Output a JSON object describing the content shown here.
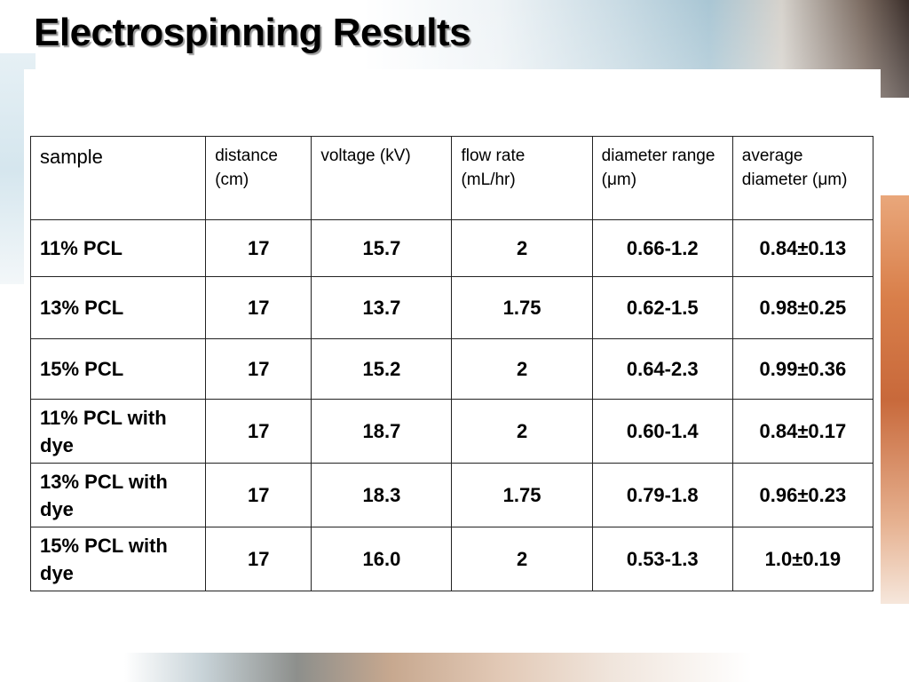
{
  "slide": {
    "title": "Electrospinning Results"
  },
  "table": {
    "headers": {
      "sample": "sample",
      "distance": "distance (cm)",
      "voltage": "voltage (kV)",
      "flow_rate": "flow rate (mL/hr)",
      "diameter_range": "diameter range (μm)",
      "average_diameter": "average diameter (μm)"
    },
    "rows": [
      {
        "sample": "11% PCL",
        "distance": "17",
        "voltage": "15.7",
        "flow_rate": "2",
        "diameter_range": "0.66-1.2",
        "average_diameter": "0.84±0.13"
      },
      {
        "sample": "13% PCL",
        "distance": "17",
        "voltage": "13.7",
        "flow_rate": "1.75",
        "diameter_range": "0.62-1.5",
        "average_diameter": "0.98±0.25"
      },
      {
        "sample": "15% PCL",
        "distance": "17",
        "voltage": "15.2",
        "flow_rate": "2",
        "diameter_range": "0.64-2.3",
        "average_diameter": "0.99±0.36"
      },
      {
        "sample": "11% PCL with dye",
        "distance": "17",
        "voltage": "18.7",
        "flow_rate": "2",
        "diameter_range": "0.60-1.4",
        "average_diameter": "0.84±0.17"
      },
      {
        "sample": "13% PCL with dye",
        "distance": "17",
        "voltage": "18.3",
        "flow_rate": "1.75",
        "diameter_range": "0.79-1.8",
        "average_diameter": "0.96±0.23"
      },
      {
        "sample": "15% PCL with dye",
        "distance": "17",
        "voltage": "16.0",
        "flow_rate": "2",
        "diameter_range": "0.53-1.3",
        "average_diameter": "1.0±0.19"
      }
    ]
  }
}
